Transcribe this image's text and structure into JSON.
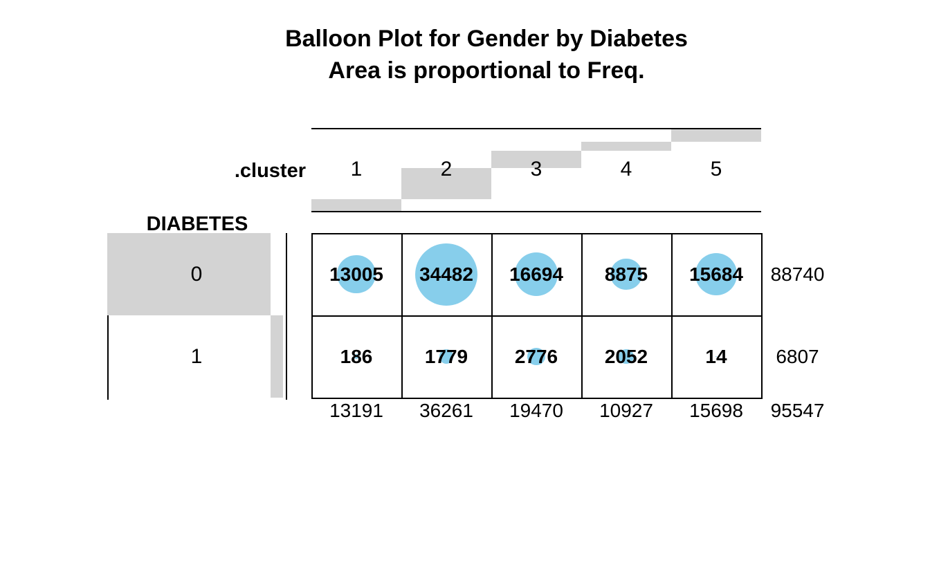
{
  "chart_data": {
    "type": "balloon",
    "title": "Balloon Plot for Gender by Diabetes",
    "subtitle": "Area is proportional to Freq.",
    "col_variable": ".cluster",
    "row_variable": "DIABETES",
    "columns": [
      "1",
      "2",
      "3",
      "4",
      "5"
    ],
    "rows": [
      "0",
      "1"
    ],
    "values": [
      [
        13005,
        34482,
        16694,
        8875,
        15684
      ],
      [
        186,
        1779,
        2776,
        2052,
        14
      ]
    ],
    "row_totals": [
      88740,
      6807
    ],
    "col_totals": [
      13191,
      36261,
      19470,
      10927,
      15698
    ],
    "grand_total": 95547,
    "balloon_color": "#87CEEB",
    "margin_bar_color": "#D3D3D3",
    "line_color": "#000000",
    "max_radius": 45,
    "legend_note": "grid on (cell borders), margin bars proportional to row/column totals"
  }
}
